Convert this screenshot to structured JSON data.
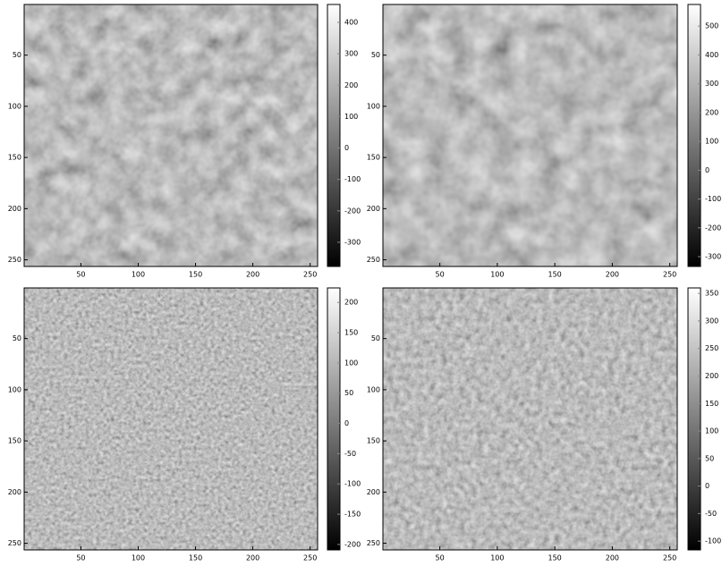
{
  "chart_data": [
    {
      "type": "image",
      "xlim": [
        0.5,
        256.5
      ],
      "ylim": [
        0.5,
        256.5
      ],
      "xticks": [
        50,
        100,
        150,
        200,
        250
      ],
      "yticks": [
        50,
        100,
        150,
        200,
        250
      ],
      "colorbar": {
        "clim": [
          -377,
          457
        ],
        "ticks": [
          400,
          300,
          200,
          100,
          0,
          -100,
          -200,
          -300
        ]
      }
    },
    {
      "type": "image",
      "xlim": [
        0.5,
        256.5
      ],
      "ylim": [
        0.5,
        256.5
      ],
      "xticks": [
        50,
        100,
        150,
        200,
        250
      ],
      "yticks": [
        50,
        100,
        150,
        200,
        250
      ],
      "colorbar": {
        "clim": [
          -334,
          575
        ],
        "ticks": [
          500,
          400,
          300,
          200,
          100,
          0,
          -100,
          -200,
          -300
        ]
      }
    },
    {
      "type": "image",
      "xlim": [
        0.5,
        256.5
      ],
      "ylim": [
        0.5,
        256.5
      ],
      "xticks": [
        50,
        100,
        150,
        200,
        250
      ],
      "yticks": [
        50,
        100,
        150,
        200,
        250
      ],
      "colorbar": {
        "clim": [
          -209,
          224
        ],
        "ticks": [
          200,
          150,
          100,
          50,
          0,
          -50,
          -100,
          -150,
          -200
        ]
      }
    },
    {
      "type": "image",
      "xlim": [
        0.5,
        256.5
      ],
      "ylim": [
        0.5,
        256.5
      ],
      "xticks": [
        50,
        100,
        150,
        200,
        250
      ],
      "yticks": [
        50,
        100,
        150,
        200,
        250
      ],
      "colorbar": {
        "clim": [
          -116,
          360
        ],
        "ticks": [
          350,
          300,
          250,
          200,
          150,
          100,
          50,
          0,
          -50,
          -100
        ]
      }
    }
  ]
}
